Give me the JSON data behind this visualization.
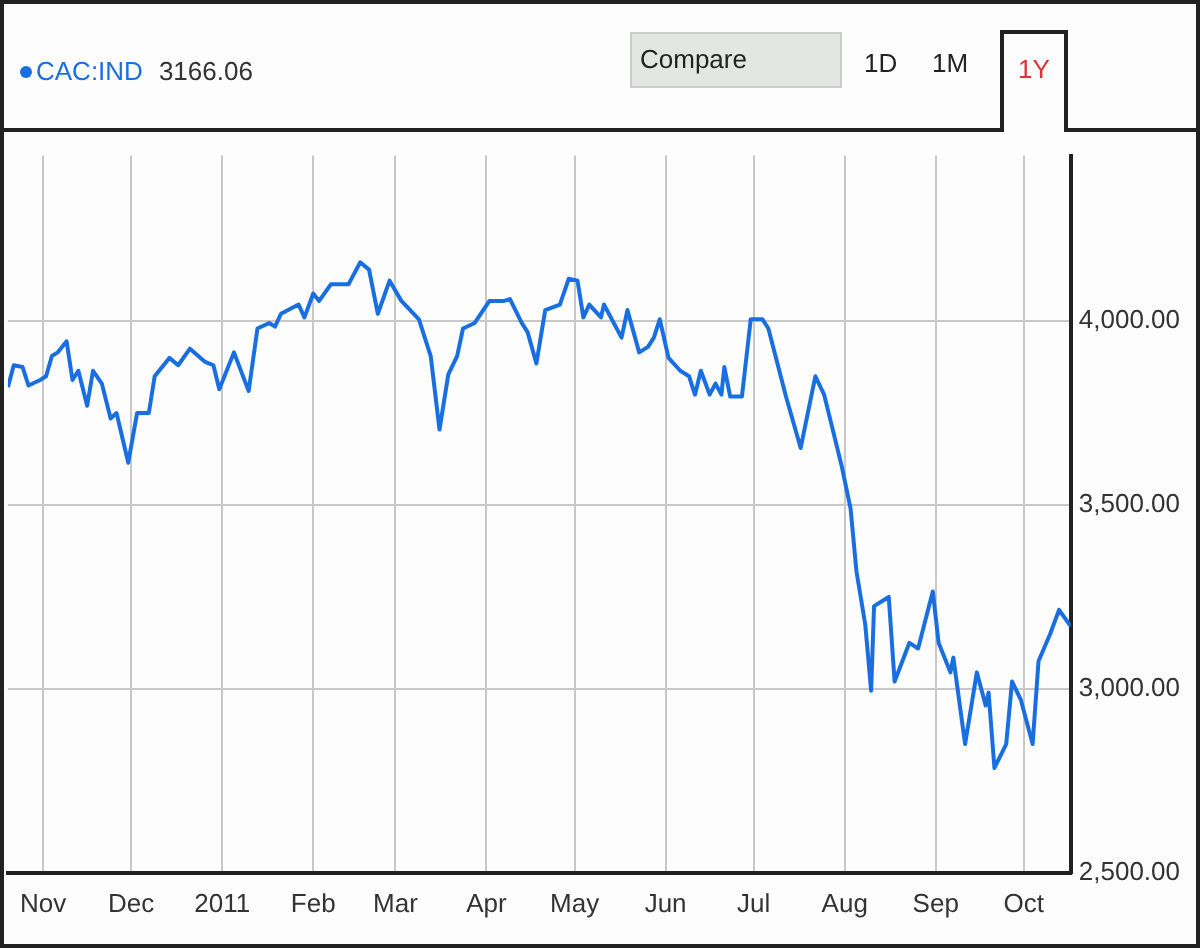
{
  "chart_data": {
    "type": "line",
    "legend": "top left",
    "grid": true,
    "marker": "none",
    "line_style": "solid",
    "annotations": [
      "3166.06",
      "Compare",
      "1D",
      "1M",
      "1Y"
    ],
    "xlim": [
      "2010-10-20",
      "2011-10-17"
    ],
    "xticks": [
      {
        "value": "2010-11-01",
        "label": "Nov"
      },
      {
        "value": "2010-12-01",
        "label": "Dec"
      },
      {
        "value": "2011-01-01",
        "label": "2011"
      },
      {
        "value": "2011-02-01",
        "label": "Feb"
      },
      {
        "value": "2011-03-01",
        "label": "Mar"
      },
      {
        "value": "2011-04-01",
        "label": "Apr"
      },
      {
        "value": "2011-05-01",
        "label": "May"
      },
      {
        "value": "2011-06-01",
        "label": "Jun"
      },
      {
        "value": "2011-07-01",
        "label": "Jul"
      },
      {
        "value": "2011-08-01",
        "label": "Aug"
      },
      {
        "value": "2011-09-01",
        "label": "Sep"
      },
      {
        "value": "2011-10-01",
        "label": "Oct"
      }
    ],
    "ylim": [
      2500,
      4450
    ],
    "yticks": [
      {
        "value": 2500,
        "label": "2,500.00"
      },
      {
        "value": 3000,
        "label": "3,000.00"
      },
      {
        "value": 3500,
        "label": "3,500.00"
      },
      {
        "value": 4000,
        "label": "4,000.00"
      }
    ],
    "series": [
      {
        "name": "CAC:IND",
        "color": "#1a6fe0",
        "x": [
          "2010-10-20",
          "2010-10-22",
          "2010-10-25",
          "2010-10-27",
          "2010-10-31",
          "2010-11-02",
          "2010-11-04",
          "2010-11-06",
          "2010-11-09",
          "2010-11-11",
          "2010-11-13",
          "2010-11-16",
          "2010-11-18",
          "2010-11-21",
          "2010-11-24",
          "2010-11-26",
          "2010-11-30",
          "2010-12-03",
          "2010-12-07",
          "2010-12-09",
          "2010-12-14",
          "2010-12-17",
          "2010-12-21",
          "2010-12-26",
          "2010-12-29",
          "2010-12-31",
          "2011-01-05",
          "2011-01-10",
          "2011-01-13",
          "2011-01-17",
          "2011-01-19",
          "2011-01-21",
          "2011-01-27",
          "2011-01-29",
          "2011-02-01",
          "2011-02-03",
          "2011-02-07",
          "2011-02-13",
          "2011-02-17",
          "2011-02-20",
          "2011-02-23",
          "2011-02-27",
          "2011-03-03",
          "2011-03-09",
          "2011-03-13",
          "2011-03-16",
          "2011-03-19",
          "2011-03-22",
          "2011-03-24",
          "2011-03-28",
          "2011-04-02",
          "2011-04-07",
          "2011-04-09",
          "2011-04-13",
          "2011-04-15",
          "2011-04-18",
          "2011-04-21",
          "2011-04-26",
          "2011-04-29",
          "2011-05-02",
          "2011-05-04",
          "2011-05-06",
          "2011-05-10",
          "2011-05-11",
          "2011-05-17",
          "2011-05-19",
          "2011-05-23",
          "2011-05-26",
          "2011-05-28",
          "2011-05-30",
          "2011-06-02",
          "2011-06-06",
          "2011-06-09",
          "2011-06-11",
          "2011-06-13",
          "2011-06-16",
          "2011-06-18",
          "2011-06-20",
          "2011-06-21",
          "2011-06-23",
          "2011-06-27",
          "2011-06-30",
          "2011-07-04",
          "2011-07-06",
          "2011-07-12",
          "2011-07-17",
          "2011-07-22",
          "2011-07-25",
          "2011-07-31",
          "2011-08-03",
          "2011-08-05",
          "2011-08-08",
          "2011-08-10",
          "2011-08-11",
          "2011-08-16",
          "2011-08-18",
          "2011-08-23",
          "2011-08-26",
          "2011-08-31",
          "2011-09-02",
          "2011-09-06",
          "2011-09-07",
          "2011-09-11",
          "2011-09-15",
          "2011-09-18",
          "2011-09-19",
          "2011-09-21",
          "2011-09-25",
          "2011-09-27",
          "2011-09-30",
          "2011-10-04",
          "2011-10-06",
          "2011-10-10",
          "2011-10-13",
          "2011-10-17"
        ],
        "values": [
          3820,
          3880,
          3875,
          3825,
          3840,
          3850,
          3905,
          3915,
          3945,
          3840,
          3865,
          3770,
          3865,
          3830,
          3735,
          3750,
          3615,
          3750,
          3750,
          3850,
          3900,
          3880,
          3925,
          3890,
          3880,
          3815,
          3915,
          3810,
          3980,
          3995,
          3985,
          4020,
          4045,
          4010,
          4075,
          4055,
          4100,
          4100,
          4160,
          4140,
          4020,
          4110,
          4055,
          4005,
          3905,
          3705,
          3855,
          3905,
          3980,
          3995,
          4055,
          4055,
          4060,
          3995,
          3970,
          3885,
          4030,
          4045,
          4115,
          4110,
          4010,
          4045,
          4010,
          4045,
          3955,
          4030,
          3915,
          3930,
          3955,
          4005,
          3900,
          3865,
          3850,
          3800,
          3865,
          3800,
          3830,
          3800,
          3875,
          3795,
          3795,
          4005,
          4005,
          3980,
          3795,
          3655,
          3850,
          3800,
          3605,
          3490,
          3320,
          3175,
          2995,
          3225,
          3250,
          3020,
          3125,
          3110,
          3265,
          3125,
          3045,
          3085,
          2850,
          3045,
          2955,
          2990,
          2785,
          2850,
          3020,
          2970,
          2850,
          3075,
          3150,
          3215,
          3170
        ]
      }
    ]
  }
}
